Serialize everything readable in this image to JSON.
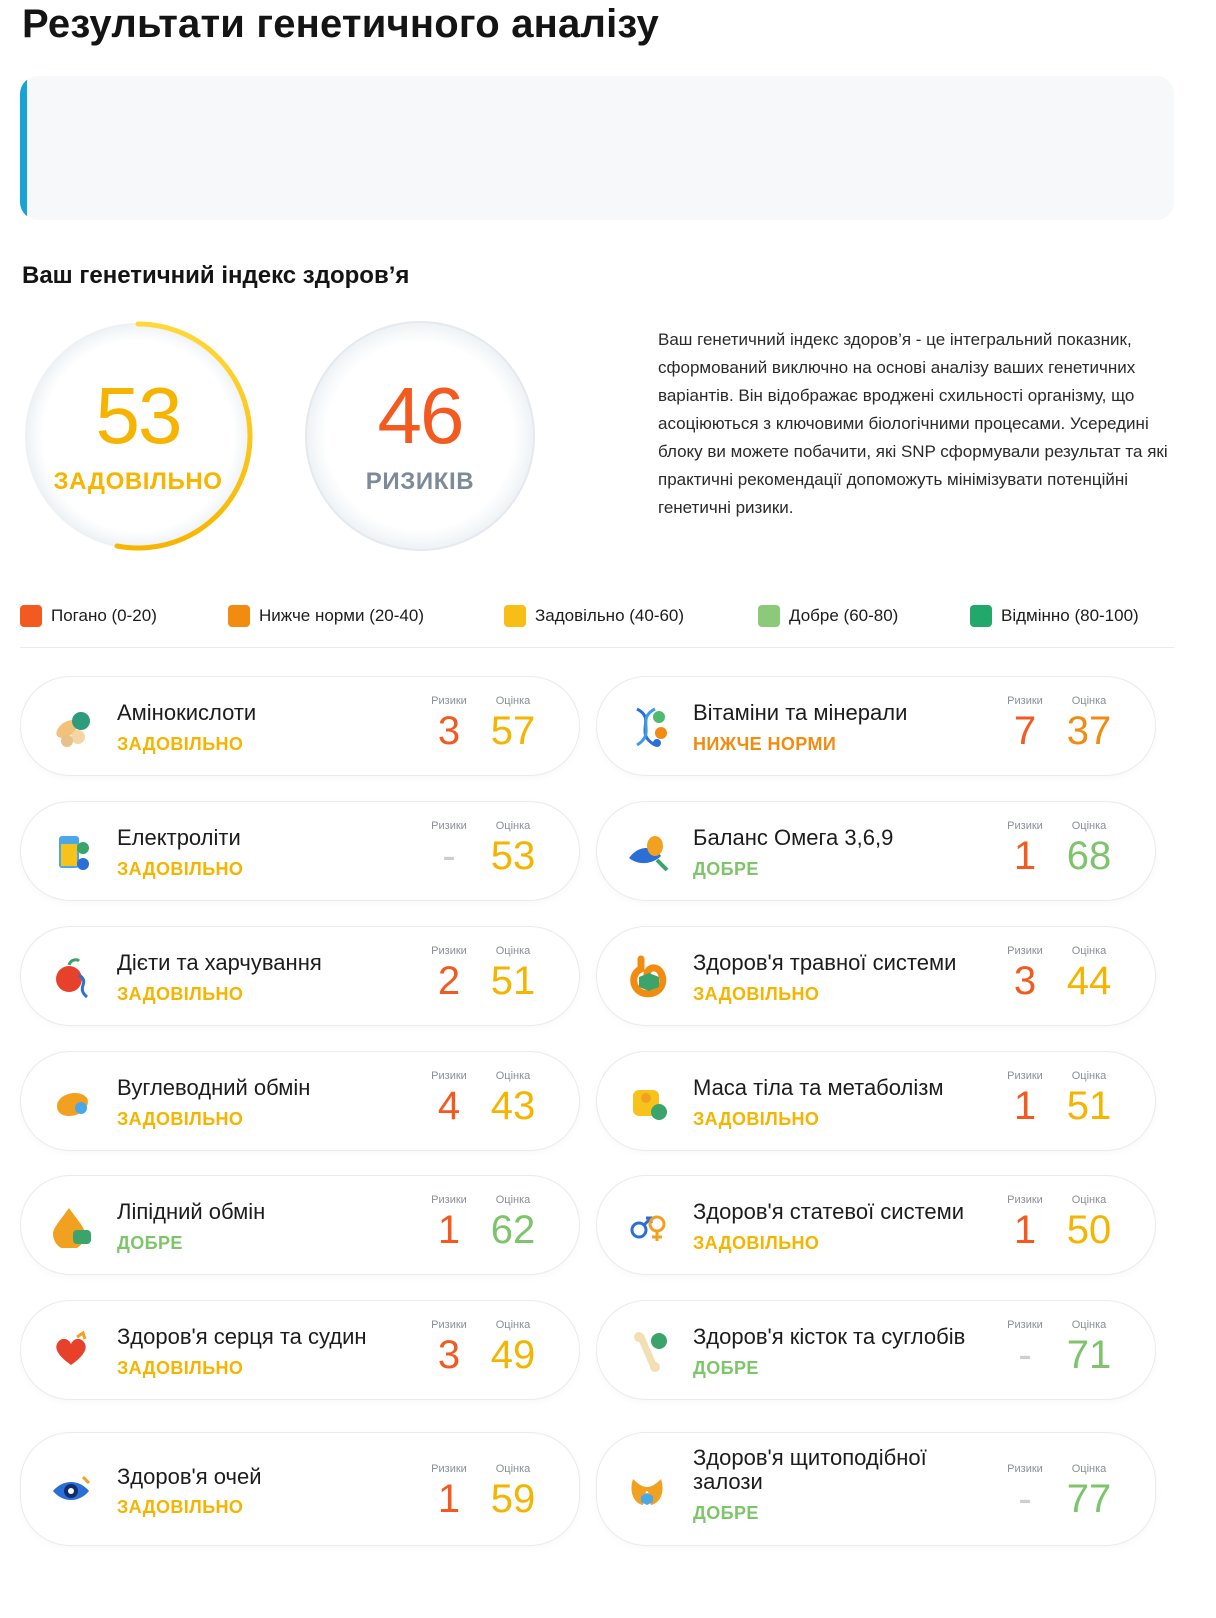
{
  "page": {
    "title": "Результати генетичного аналізу",
    "section_title": "Ваш генетичний індекс здоров’я"
  },
  "index": {
    "score_value": "53",
    "score_label": "ЗАДОВІЛЬНО",
    "score_fraction": 0.53,
    "risks_value": "46",
    "risks_label": "РИЗИКІВ"
  },
  "description": "Ваш генетичний індекс здоров’я - це інтегральний показник, сформований виключно на основі аналізу ваших генетичних варіантів. Він відображає вроджені схильності організму, що асоціюються з ключовими біологічними процесами. Усередині блоку ви можете побачити, які SNP сформували результат та які практичні рекомендації допоможуть мінімізувати потенційні генетичні ризики.",
  "legend": [
    {
      "label": "Погано (0-20)",
      "color": "#f25a1f"
    },
    {
      "label": "Нижче норми (20-40)",
      "color": "#f28c11"
    },
    {
      "label": "Задовільно (40-60)",
      "color": "#f7be16"
    },
    {
      "label": "Добре (60-80)",
      "color": "#8cc97a"
    },
    {
      "label": "Відмінно (80-100)",
      "color": "#23a86b"
    }
  ],
  "captions": {
    "risks": "Ризики",
    "score": "Оцінка"
  },
  "cards": [
    {
      "name": "Амінокислоти",
      "status": "ЗАДОВІЛЬНО",
      "tone": "yellow",
      "risks": "3",
      "score": "57",
      "icon": "amino-acids-icon"
    },
    {
      "name": "Вітаміни та мінерали",
      "status": "НИЖЧЕ НОРМИ",
      "tone": "orange",
      "risks": "7",
      "score": "37",
      "icon": "vitamins-minerals-icon"
    },
    {
      "name": "Електроліти",
      "status": "ЗАДОВІЛЬНО",
      "tone": "yellow",
      "risks": "-",
      "score": "53",
      "icon": "electrolytes-icon"
    },
    {
      "name": "Баланс Омега 3,6,9",
      "status": "ДОБРЕ",
      "tone": "green",
      "risks": "1",
      "score": "68",
      "icon": "omega-balance-icon"
    },
    {
      "name": "Дієти та харчування",
      "status": "ЗАДОВІЛЬНО",
      "tone": "yellow",
      "risks": "2",
      "score": "51",
      "icon": "diet-nutrition-icon"
    },
    {
      "name": "Здоров'я травної системи",
      "status": "ЗАДОВІЛЬНО",
      "tone": "yellow",
      "risks": "3",
      "score": "44",
      "icon": "digestive-system-icon"
    },
    {
      "name": "Вуглеводний обмін",
      "status": "ЗАДОВІЛЬНО",
      "tone": "yellow",
      "risks": "4",
      "score": "43",
      "icon": "carbohydrate-metabolism-icon"
    },
    {
      "name": "Маса тіла та метаболізм",
      "status": "ЗАДОВІЛЬНО",
      "tone": "yellow",
      "risks": "1",
      "score": "51",
      "icon": "body-mass-metabolism-icon"
    },
    {
      "name": "Ліпідний обмін",
      "status": "ДОБРЕ",
      "tone": "green",
      "risks": "1",
      "score": "62",
      "icon": "lipid-metabolism-icon"
    },
    {
      "name": "Здоров'я статевої системи",
      "status": "ЗАДОВІЛЬНО",
      "tone": "yellow",
      "risks": "1",
      "score": "50",
      "icon": "reproductive-system-icon"
    },
    {
      "name": "Здоров'я серця та судин",
      "status": "ЗАДОВІЛЬНО",
      "tone": "yellow",
      "risks": "3",
      "score": "49",
      "icon": "heart-vessels-icon"
    },
    {
      "name": "Здоров'я кісток та суглобів",
      "status": "ДОБРЕ",
      "tone": "green",
      "risks": "-",
      "score": "71",
      "icon": "bones-joints-icon"
    },
    {
      "name": "Здоров'я очей",
      "status": "ЗАДОВІЛЬНО",
      "tone": "yellow",
      "risks": "1",
      "score": "59",
      "icon": "eye-health-icon"
    },
    {
      "name": "Здоров'я щитоподібної залози",
      "status": "ДОБРЕ",
      "tone": "green",
      "risks": "-",
      "score": "77",
      "icon": "thyroid-gland-icon"
    }
  ]
}
